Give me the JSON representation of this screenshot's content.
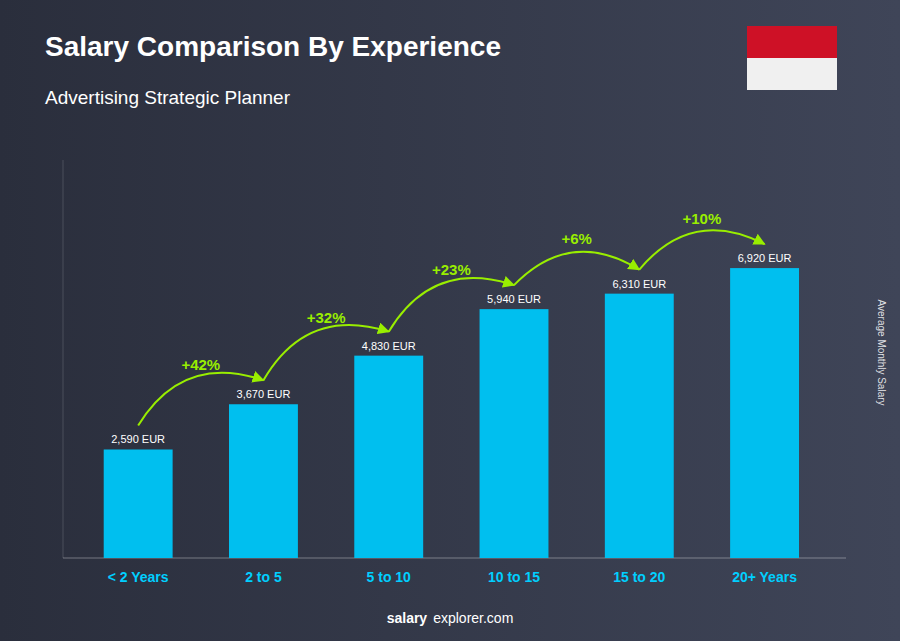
{
  "chart_data": {
    "type": "bar",
    "title": "Salary Comparison By Experience",
    "subtitle": "Advertising Strategic Planner",
    "ylabel": "Average Monthly Salary",
    "categories": [
      "< 2 Years",
      "2 to 5",
      "5 to 10",
      "10 to 15",
      "15 to 20",
      "20+ Years"
    ],
    "values": [
      2590,
      3670,
      4830,
      5940,
      6310,
      6920
    ],
    "value_labels": [
      "2,590 EUR",
      "3,670 EUR",
      "4,830 EUR",
      "5,940 EUR",
      "6,310 EUR",
      "6,920 EUR"
    ],
    "data_labels": true,
    "annotations": [
      "+42%",
      "+32%",
      "+23%",
      "+6%",
      "+10%"
    ],
    "watermark": [
      "salary",
      "explorer.com"
    ],
    "color": "#00BFEF",
    "ylim": [
      0,
      9500
    ],
    "tick_labels": "x",
    "grid": false
  }
}
